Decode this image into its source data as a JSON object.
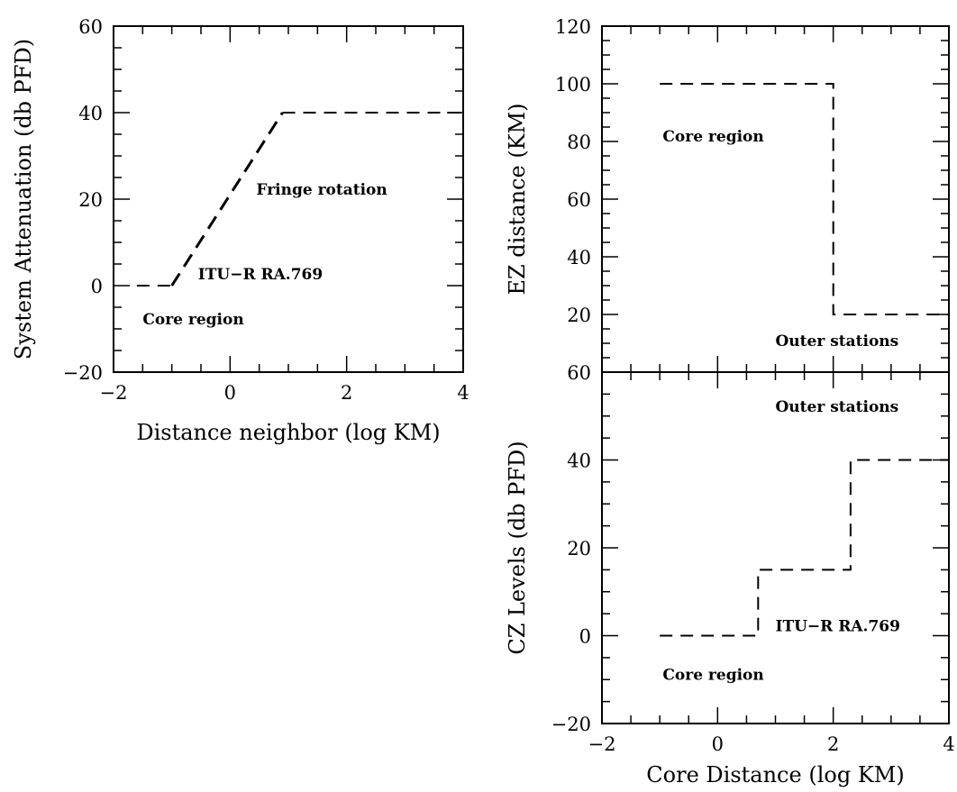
{
  "chart_data": [
    {
      "id": "left",
      "type": "line",
      "xlabel": "Distance neighbor (log KM)",
      "ylabel": "System Attenuation (db PFD)",
      "xlim": [
        -2,
        4
      ],
      "ylim": [
        -20,
        60
      ],
      "xticks": [
        -2,
        0,
        2,
        4
      ],
      "yticks": [
        -20,
        0,
        20,
        40,
        60
      ],
      "xminor": 0.5,
      "yminor": 5,
      "series": [
        {
          "x": [
            -1.6,
            -1.0
          ],
          "y": [
            0,
            0
          ],
          "style": "thin"
        },
        {
          "x": [
            -1.0,
            0.9
          ],
          "y": [
            0,
            40
          ],
          "style": "thick"
        },
        {
          "x": [
            0.9,
            4.0
          ],
          "y": [
            40,
            40
          ],
          "style": "thin"
        }
      ],
      "annotations": [
        {
          "text": "Fringe rotation",
          "x": 0.45,
          "y": 21
        },
        {
          "text": "ITU−R RA.769",
          "x": -0.55,
          "y": 1.5
        },
        {
          "text": "Core region",
          "x": -1.5,
          "y": -9
        }
      ]
    },
    {
      "id": "top-right",
      "type": "line",
      "xlabel": "",
      "ylabel": "EZ distance (KM)",
      "xlim": [
        -2,
        4
      ],
      "ylim": [
        0,
        120
      ],
      "xticks": [],
      "yticks": [
        20,
        40,
        60,
        80,
        100,
        120
      ],
      "xminor": 0.5,
      "yminor": 5,
      "series": [
        {
          "x": [
            -1.0,
            2.0,
            2.0,
            4.0
          ],
          "y": [
            100,
            100,
            20,
            20
          ],
          "style": "thin"
        }
      ],
      "annotations": [
        {
          "text": "Core region",
          "x": -0.95,
          "y": 80
        },
        {
          "text": "Outer stations",
          "x": 1.0,
          "y": 9
        }
      ]
    },
    {
      "id": "bottom-right",
      "type": "line",
      "xlabel": "Core Distance (log KM)",
      "ylabel": "CZ Levels (db PFD)",
      "xlim": [
        -2,
        4
      ],
      "ylim": [
        -20,
        60
      ],
      "xticks": [
        -2,
        0,
        2,
        4
      ],
      "yticks": [
        -20,
        0,
        20,
        40,
        60
      ],
      "xminor": 0.5,
      "yminor": 5,
      "series": [
        {
          "x": [
            -1.0,
            0.7,
            0.7,
            2.3,
            2.3,
            4.0
          ],
          "y": [
            0,
            0,
            15,
            15,
            40,
            40
          ],
          "style": "thin"
        }
      ],
      "annotations": [
        {
          "text": "Outer stations",
          "x": 1.0,
          "y": 51
        },
        {
          "text": "ITU−R RA.769",
          "x": 1.0,
          "y": 1
        },
        {
          "text": "Core region",
          "x": -0.95,
          "y": -10
        }
      ]
    }
  ]
}
